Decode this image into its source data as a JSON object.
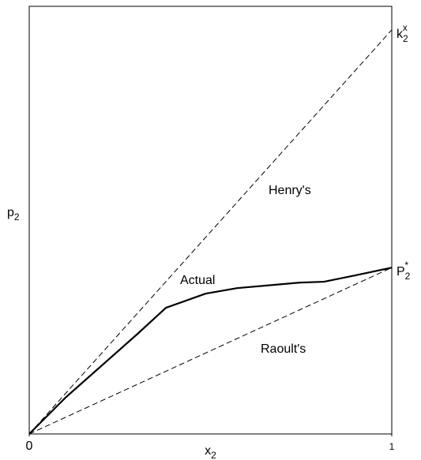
{
  "chart_data": {
    "type": "line",
    "x_label": {
      "base": "x",
      "sub": "2"
    },
    "y_label": {
      "base": "p",
      "sub": "2"
    },
    "xlim": [
      0,
      1
    ],
    "ylim": [
      0,
      1
    ],
    "xticks": [
      0,
      1
    ],
    "annotations": [
      {
        "base": "k",
        "sub": "2",
        "sup": "x",
        "x": 1,
        "y": 0.945
      },
      {
        "base": "P",
        "sub": "2",
        "sup": "*",
        "x": 1,
        "y": 0.389
      }
    ],
    "series": [
      {
        "name": "Henry's",
        "color": "#000000",
        "dashed": true,
        "x": [
          0,
          1
        ],
        "values": [
          0,
          0.945
        ]
      },
      {
        "name": "Actual",
        "color": "#000000",
        "dashed": false,
        "x": [
          0,
          0.1,
          0.2,
          0.3,
          0.377,
          0.486,
          0.573,
          0.747,
          0.813,
          0.9,
          1
        ],
        "values": [
          0,
          0.085,
          0.16,
          0.235,
          0.295,
          0.328,
          0.341,
          0.354,
          0.356,
          0.371,
          0.389
        ]
      },
      {
        "name": "Raoult's",
        "color": "#000000",
        "dashed": true,
        "x": [
          0,
          1
        ],
        "values": [
          0,
          0.389
        ]
      }
    ]
  }
}
